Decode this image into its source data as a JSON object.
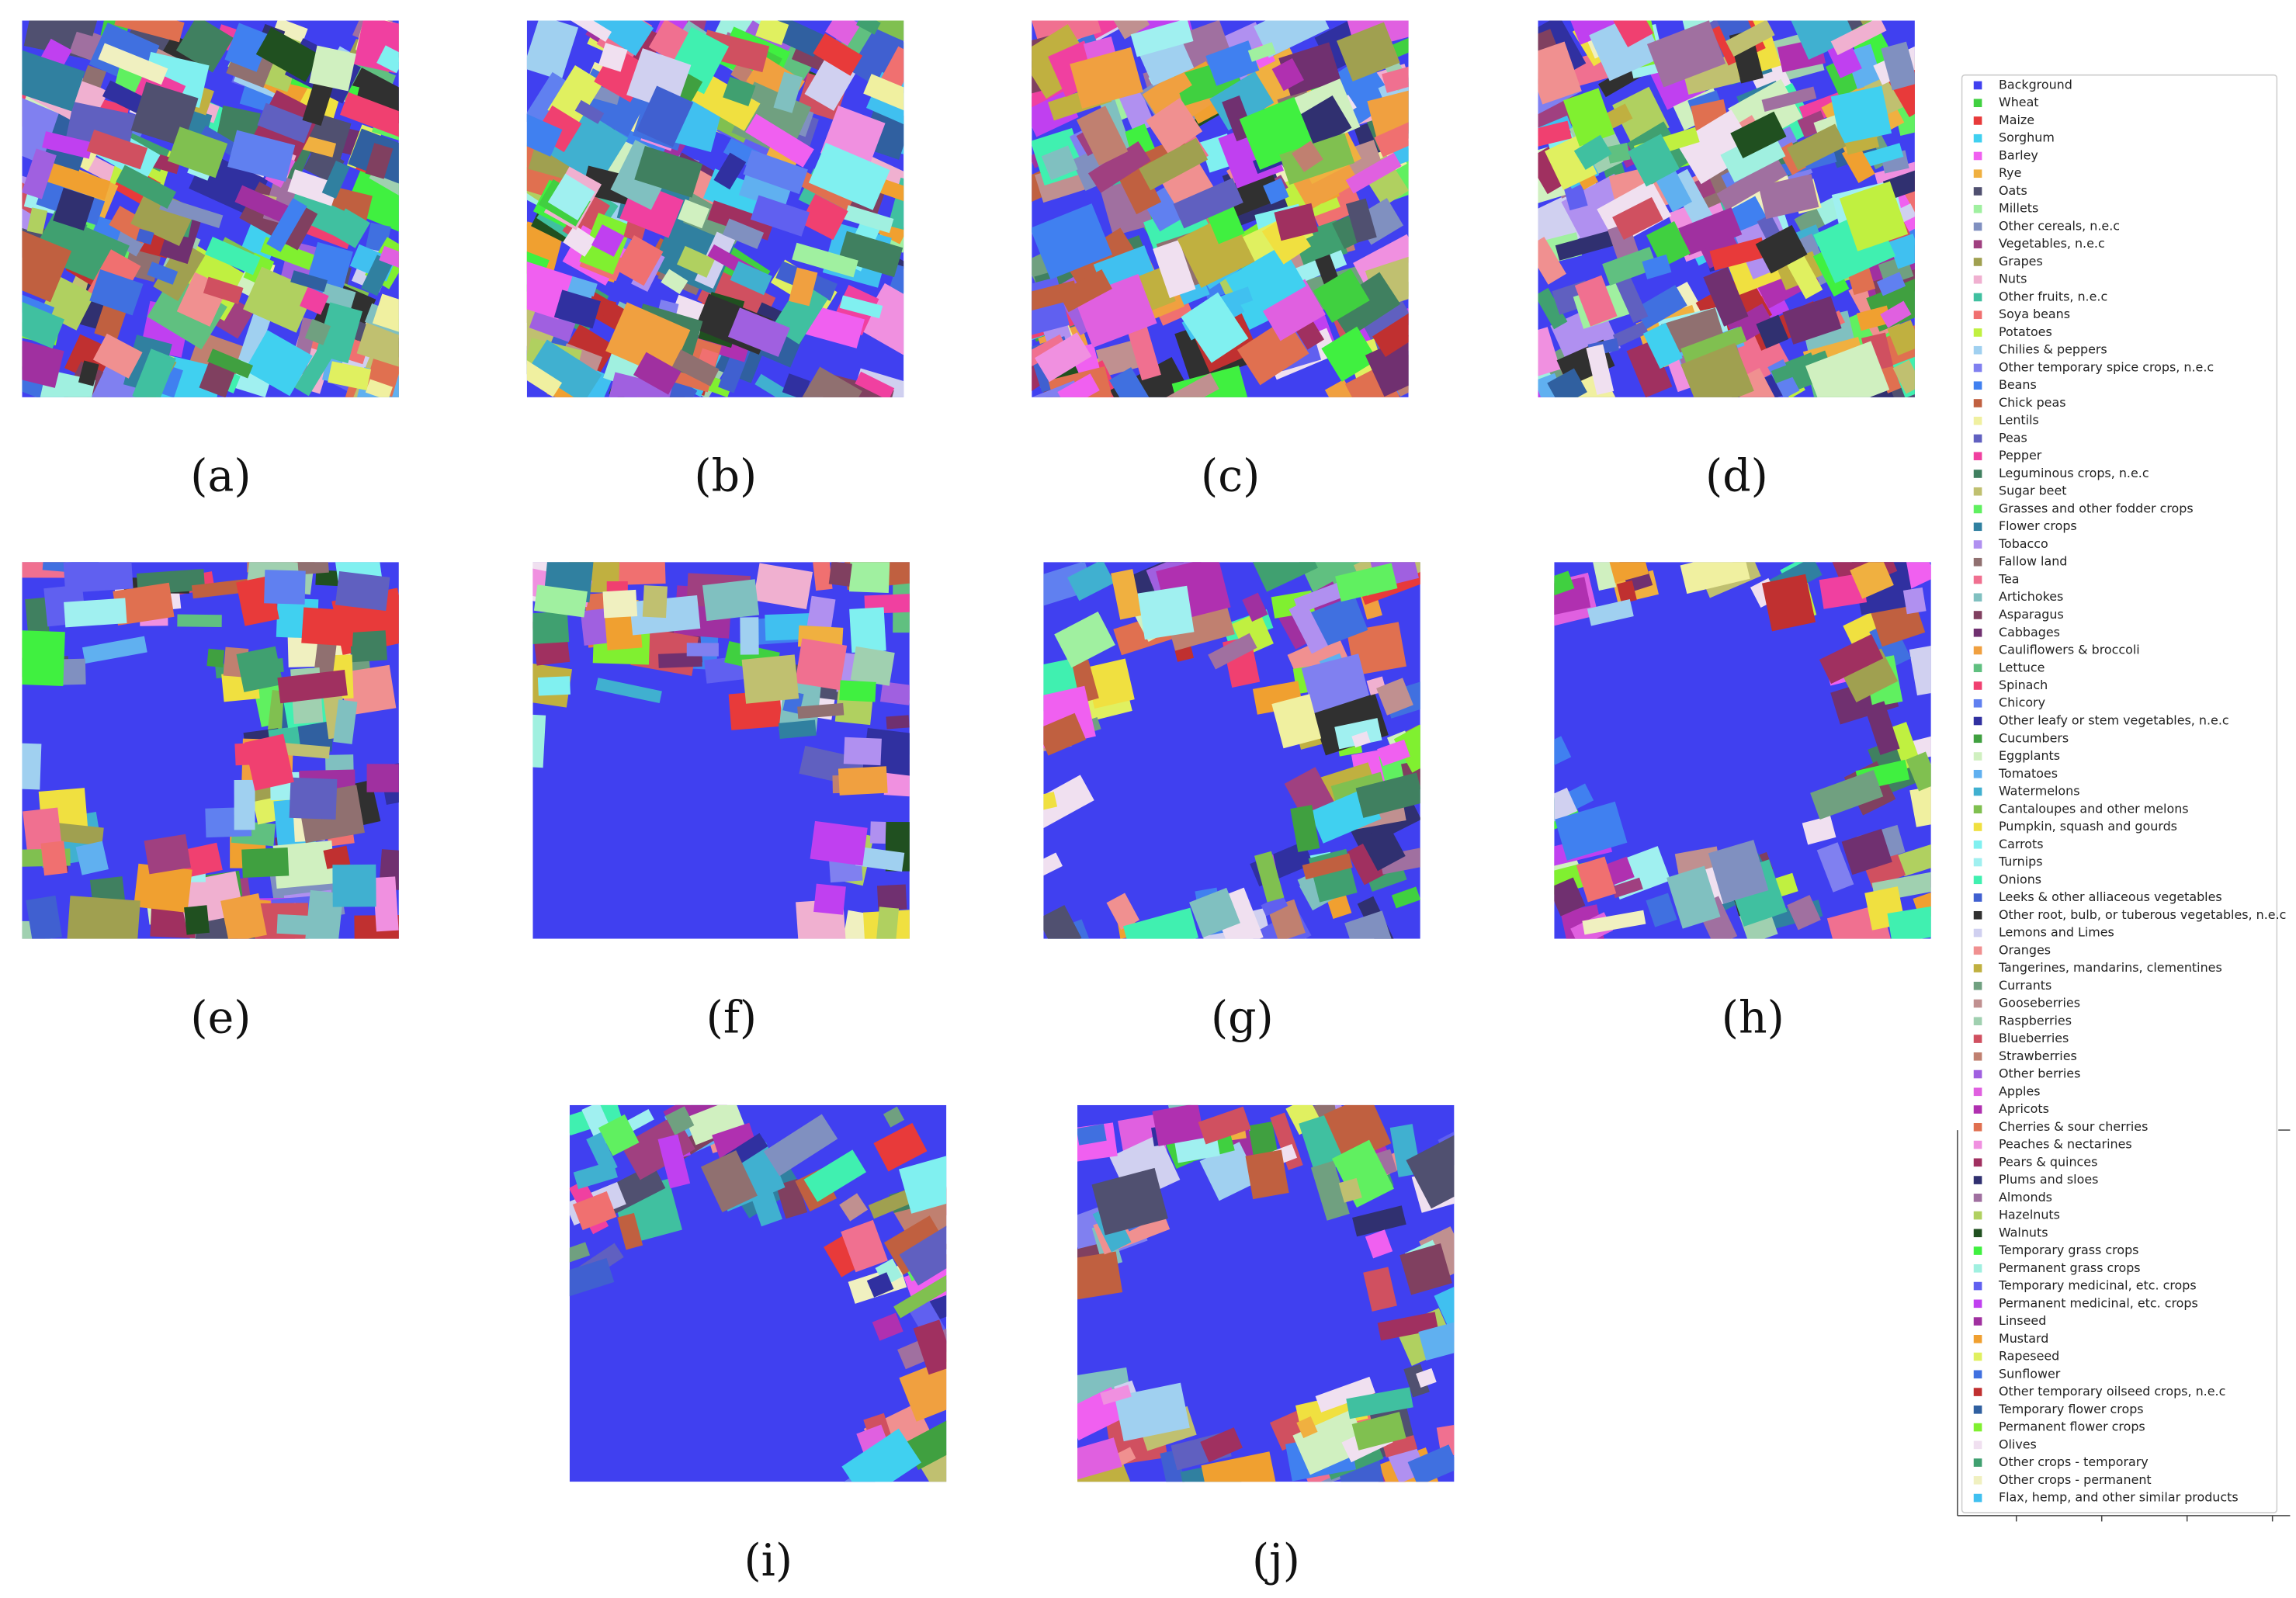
{
  "panels": [
    {
      "label": "(a)"
    },
    {
      "label": "(b)"
    },
    {
      "label": "(c)"
    },
    {
      "label": "(d)"
    },
    {
      "label": "(e)"
    },
    {
      "label": "(f)"
    },
    {
      "label": "(g)"
    },
    {
      "label": "(h)"
    },
    {
      "label": "(i)"
    },
    {
      "label": "(j)"
    }
  ],
  "legend": {
    "items": [
      {
        "name": "Background",
        "color": "#4040f0"
      },
      {
        "name": "Wheat",
        "color": "#40d040"
      },
      {
        "name": "Maize",
        "color": "#e83a3a"
      },
      {
        "name": "Sorghum",
        "color": "#40d0f0"
      },
      {
        "name": "Barley",
        "color": "#f060f0"
      },
      {
        "name": "Rye",
        "color": "#f0b040"
      },
      {
        "name": "Oats",
        "color": "#505070"
      },
      {
        "name": "Millets",
        "color": "#a0f0a0"
      },
      {
        "name": "Other cereals, n.e.c",
        "color": "#8090c0"
      },
      {
        "name": "Vegetables, n.e.c",
        "color": "#a04080"
      },
      {
        "name": "Grapes",
        "color": "#a0a050"
      },
      {
        "name": "Nuts",
        "color": "#f0b0d0"
      },
      {
        "name": "Other fruits, n.e.c",
        "color": "#40c0a0"
      },
      {
        "name": "Soya beans",
        "color": "#f07070"
      },
      {
        "name": "Potatoes",
        "color": "#c0f040"
      },
      {
        "name": "Chilies & peppers",
        "color": "#a0d0f0"
      },
      {
        "name": "Other temporary spice crops, n.e.c",
        "color": "#8080f0"
      },
      {
        "name": "Beans",
        "color": "#4080f0"
      },
      {
        "name": "Chick peas",
        "color": "#c06040"
      },
      {
        "name": "Lentils",
        "color": "#f0f0a0"
      },
      {
        "name": "Peas",
        "color": "#6060c0"
      },
      {
        "name": "Pepper",
        "color": "#f040a0"
      },
      {
        "name": "Leguminous crops, n.e.c",
        "color": "#408060"
      },
      {
        "name": "Sugar beet",
        "color": "#c0c070"
      },
      {
        "name": "Grasses and other fodder crops",
        "color": "#60f060"
      },
      {
        "name": "Flower crops",
        "color": "#3080a0"
      },
      {
        "name": "Tobacco",
        "color": "#b090f0"
      },
      {
        "name": "Fallow land",
        "color": "#907070"
      },
      {
        "name": "Tea",
        "color": "#f07090"
      },
      {
        "name": "Artichokes",
        "color": "#80c0c0"
      },
      {
        "name": "Asparagus",
        "color": "#804060"
      },
      {
        "name": "Cabbages",
        "color": "#703070"
      },
      {
        "name": "Cauliflowers & broccoli",
        "color": "#f0a040"
      },
      {
        "name": "Lettuce",
        "color": "#60c080"
      },
      {
        "name": "Spinach",
        "color": "#f04070"
      },
      {
        "name": "Chicory",
        "color": "#6080f0"
      },
      {
        "name": "Other leafy or stem vegetables, n.e.c",
        "color": "#3030a0"
      },
      {
        "name": "Cucumbers",
        "color": "#40a040"
      },
      {
        "name": "Eggplants",
        "color": "#d0f0c0"
      },
      {
        "name": "Tomatoes",
        "color": "#60b0f0"
      },
      {
        "name": "Watermelons",
        "color": "#40b0d0"
      },
      {
        "name": "Cantaloupes and other melons",
        "color": "#80c050"
      },
      {
        "name": "Pumpkin, squash and gourds",
        "color": "#f0e040"
      },
      {
        "name": "Carrots",
        "color": "#80f0f0"
      },
      {
        "name": "Turnips",
        "color": "#a0f0f0"
      },
      {
        "name": "Onions",
        "color": "#40f0b0"
      },
      {
        "name": "Leeks & other alliaceous vegetables",
        "color": "#4060d0"
      },
      {
        "name": "Other root, bulb, or tuberous vegetables, n.e.c",
        "color": "#303030"
      },
      {
        "name": "Lemons and Limes",
        "color": "#d0d0f0"
      },
      {
        "name": "Oranges",
        "color": "#f09090"
      },
      {
        "name": "Tangerines, mandarins, clementines",
        "color": "#c0b040"
      },
      {
        "name": "Currants",
        "color": "#70a080"
      },
      {
        "name": "Gooseberries",
        "color": "#c09090"
      },
      {
        "name": "Raspberries",
        "color": "#a0d0b0"
      },
      {
        "name": "Blueberries",
        "color": "#d05060"
      },
      {
        "name": "Strawberries",
        "color": "#c08070"
      },
      {
        "name": "Other berries",
        "color": "#a060e0"
      },
      {
        "name": "Apples",
        "color": "#e060e0"
      },
      {
        "name": "Apricots",
        "color": "#b030b0"
      },
      {
        "name": "Cherries & sour cherries",
        "color": "#e07050"
      },
      {
        "name": "Peaches & nectarines",
        "color": "#f090e0"
      },
      {
        "name": "Pears & quinces",
        "color": "#a03060"
      },
      {
        "name": "Plums and sloes",
        "color": "#303070"
      },
      {
        "name": "Almonds",
        "color": "#a070a0"
      },
      {
        "name": "Hazelnuts",
        "color": "#b0d060"
      },
      {
        "name": "Walnuts",
        "color": "#205020"
      },
      {
        "name": "Temporary grass crops",
        "color": "#40f040"
      },
      {
        "name": "Permanent grass crops",
        "color": "#a0f0e0"
      },
      {
        "name": "Temporary medicinal, etc. crops",
        "color": "#6060f0"
      },
      {
        "name": "Permanent medicinal, etc. crops",
        "color": "#c040f0"
      },
      {
        "name": "Linseed",
        "color": "#a030a0"
      },
      {
        "name": "Mustard",
        "color": "#f0a030"
      },
      {
        "name": "Rapeseed",
        "color": "#e0f060"
      },
      {
        "name": "Sunflower",
        "color": "#4070e0"
      },
      {
        "name": "Other temporary oilseed crops, n.e.c",
        "color": "#c03030"
      },
      {
        "name": "Temporary flower crops",
        "color": "#3060a0"
      },
      {
        "name": "Permanent flower crops",
        "color": "#80f030"
      },
      {
        "name": "Olives",
        "color": "#f0e0f0"
      },
      {
        "name": "Other crops - temporary",
        "color": "#40a070"
      },
      {
        "name": "Other crops - permanent",
        "color": "#f0f0c0"
      },
      {
        "name": "Flax, hemp, and other similar products",
        "color": "#40c0f0"
      }
    ]
  }
}
